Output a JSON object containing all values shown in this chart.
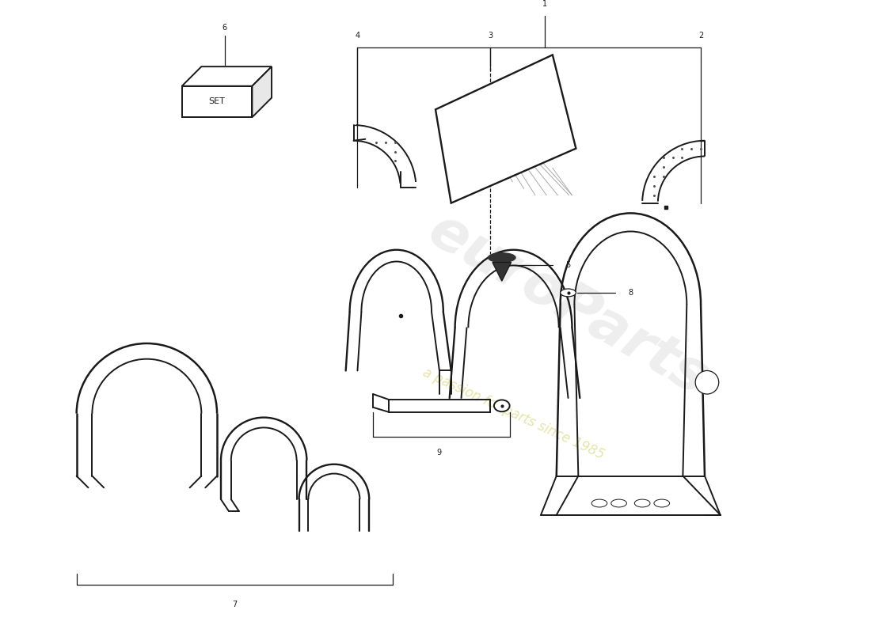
{
  "bg_color": "#ffffff",
  "line_color": "#1a1a1a",
  "wm1": "euroParts",
  "wm2": "a passion for parts since 1985",
  "set_label": "SET",
  "fig_w": 11.0,
  "fig_h": 8.0,
  "dpi": 100
}
